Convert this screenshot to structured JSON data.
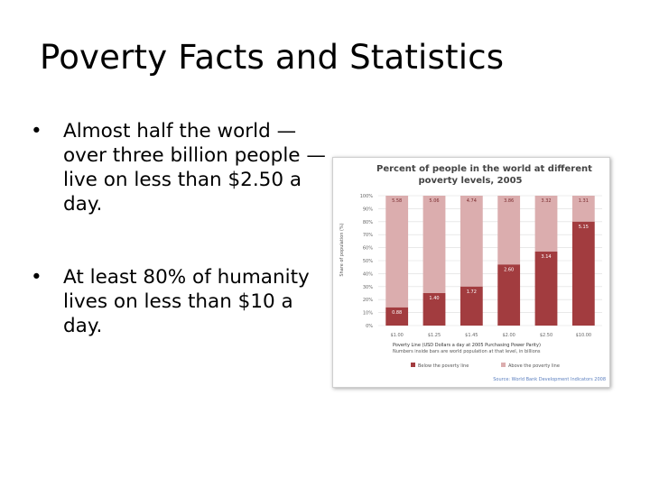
{
  "slide": {
    "title": "Poverty Facts and Statistics",
    "bullet_symbol": "•",
    "bullets": [
      "Almost half the world — over three billion people — live on less than $2.50 a day.",
      "At least 80% of humanity lives on less than $10 a day."
    ]
  },
  "colors": {
    "below": "#a23c3f",
    "above": "#dbadae",
    "grid": "#dcdcdc",
    "source": "#5b7fbf"
  },
  "chart_data": {
    "type": "bar",
    "title": "Percent of people in the world at different poverty levels, 2005",
    "ylabel": "Share of population (%)",
    "xlabel": "Poverty Line (USD Dollars a day at 2005 Purchasing Power Parity)",
    "subnote": "Numbers inside bars are world population at that level, in billions",
    "categories": [
      "$1.00",
      "$1.25",
      "$1.45",
      "$2.00",
      "$2.50",
      "$10.00"
    ],
    "y_ticks": [
      "0%",
      "10%",
      "20%",
      "30%",
      "40%",
      "50%",
      "60%",
      "70%",
      "80%",
      "90%",
      "100%"
    ],
    "ylim": [
      0,
      100
    ],
    "stacked": true,
    "series": [
      {
        "name": "Below the poverty line",
        "values": [
          14,
          25,
          30,
          47,
          57,
          80
        ],
        "labels": [
          "0.88",
          "1.40",
          "1.72",
          "2.60",
          "3.14",
          "5.15"
        ]
      },
      {
        "name": "Above the poverty line",
        "values": [
          86,
          75,
          70,
          53,
          43,
          20
        ],
        "labels": [
          "5.58",
          "5.06",
          "4.74",
          "3.86",
          "3.32",
          "1.31"
        ]
      }
    ],
    "legend_position": "bottom",
    "source": "Source: World Bank Development Indicators 2008",
    "grid": true
  }
}
